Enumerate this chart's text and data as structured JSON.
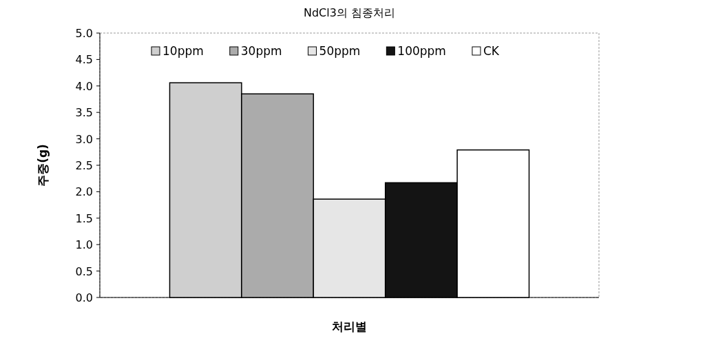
{
  "chart_data": {
    "type": "bar",
    "title": "NdCl3의 침종처리",
    "xlabel": "처리별",
    "ylabel": "주중(g)",
    "categories": [
      null
    ],
    "series": [
      {
        "name": "10ppm",
        "color": "#cfcfcf",
        "values": [
          4.06
        ]
      },
      {
        "name": "30ppm",
        "color": "#ababab",
        "values": [
          3.85
        ]
      },
      {
        "name": "50ppm",
        "color": "#e6e6e6",
        "values": [
          1.86
        ]
      },
      {
        "name": "100ppm",
        "color": "#141414",
        "values": [
          2.17
        ]
      },
      {
        "name": "CK",
        "color": "#ffffff",
        "values": [
          2.79
        ]
      }
    ],
    "ylim": [
      0,
      5
    ],
    "yticks": [
      {
        "value": 0,
        "label": "0.0"
      },
      {
        "value": 0.5,
        "label": "0.5"
      },
      {
        "value": 1,
        "label": "1.0"
      },
      {
        "value": 1.5,
        "label": "1.5"
      },
      {
        "value": 2,
        "label": "2.0"
      },
      {
        "value": 2.5,
        "label": "2.5"
      },
      {
        "value": 3,
        "label": "3.0"
      },
      {
        "value": 3.5,
        "label": "3.5"
      },
      {
        "value": 4,
        "label": "4.0"
      },
      {
        "value": 4.5,
        "label": "4.5"
      },
      {
        "value": 5,
        "label": "5.0"
      }
    ],
    "legend": "top"
  }
}
